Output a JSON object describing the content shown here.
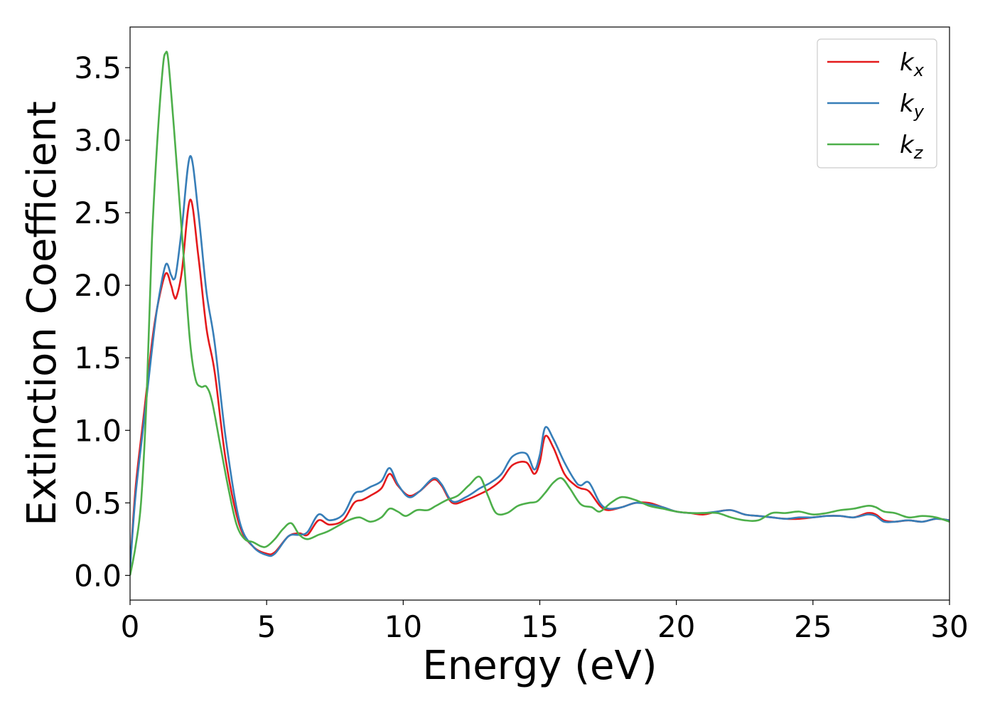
{
  "chart_data": {
    "type": "line",
    "title": "",
    "xlabel": "Energy (eV)",
    "ylabel": "Extinction Coefficient",
    "xlim": [
      0,
      30
    ],
    "ylim": [
      -0.17,
      3.78
    ],
    "xticks": [
      0,
      5,
      10,
      15,
      20,
      25,
      30
    ],
    "xtick_labels": [
      "0",
      "5",
      "10",
      "15",
      "20",
      "25",
      "30"
    ],
    "yticks": [
      0.0,
      0.5,
      1.0,
      1.5,
      2.0,
      2.5,
      3.0,
      3.5
    ],
    "ytick_labels": [
      "0.0",
      "0.5",
      "1.0",
      "1.5",
      "2.0",
      "2.5",
      "3.0",
      "3.5"
    ],
    "grid": false,
    "legend_position": "top-right",
    "series": [
      {
        "name": "kx",
        "legend_main": "k",
        "legend_sub": "x",
        "color": "#e41a1c",
        "x": [
          0,
          0.2,
          0.5,
          0.8,
          1.0,
          1.3,
          1.5,
          1.6,
          1.7,
          1.9,
          2.2,
          2.5,
          2.8,
          3.1,
          3.5,
          4.0,
          4.5,
          5.0,
          5.3,
          5.8,
          6.2,
          6.5,
          6.9,
          7.3,
          7.8,
          8.2,
          8.5,
          8.8,
          9.2,
          9.5,
          9.8,
          10.2,
          10.6,
          11.1,
          11.4,
          11.8,
          12.3,
          12.8,
          13.2,
          13.6,
          14.0,
          14.5,
          14.8,
          15.0,
          15.2,
          15.5,
          15.9,
          16.3,
          16.5,
          16.8,
          17.2,
          17.5,
          18.0,
          18.5,
          19.0,
          19.5,
          20.0,
          20.5,
          21.0,
          21.5,
          22.0,
          22.5,
          23.0,
          23.5,
          24.0,
          24.5,
          25.0,
          25.5,
          26.0,
          26.5,
          27.0,
          27.3,
          27.6,
          28.0,
          28.5,
          29.0,
          29.5,
          30.0
        ],
        "y": [
          0.05,
          0.6,
          1.1,
          1.6,
          1.85,
          2.08,
          2.0,
          1.93,
          1.92,
          2.1,
          2.59,
          2.2,
          1.7,
          1.4,
          0.8,
          0.35,
          0.2,
          0.15,
          0.16,
          0.27,
          0.29,
          0.28,
          0.38,
          0.35,
          0.38,
          0.5,
          0.52,
          0.55,
          0.6,
          0.7,
          0.62,
          0.55,
          0.58,
          0.66,
          0.62,
          0.5,
          0.52,
          0.56,
          0.6,
          0.66,
          0.76,
          0.78,
          0.7,
          0.78,
          0.96,
          0.88,
          0.7,
          0.62,
          0.6,
          0.58,
          0.48,
          0.45,
          0.47,
          0.5,
          0.5,
          0.47,
          0.44,
          0.43,
          0.42,
          0.44,
          0.45,
          0.42,
          0.41,
          0.4,
          0.39,
          0.39,
          0.4,
          0.41,
          0.41,
          0.4,
          0.43,
          0.42,
          0.38,
          0.37,
          0.38,
          0.37,
          0.39,
          0.38
        ]
      },
      {
        "name": "ky",
        "legend_main": "k",
        "legend_sub": "y",
        "color": "#377eb8",
        "x": [
          0,
          0.2,
          0.5,
          0.8,
          1.0,
          1.3,
          1.5,
          1.6,
          1.7,
          1.9,
          2.2,
          2.5,
          2.8,
          3.1,
          3.5,
          4.0,
          4.5,
          5.0,
          5.3,
          5.8,
          6.2,
          6.5,
          6.9,
          7.3,
          7.8,
          8.2,
          8.5,
          8.8,
          9.2,
          9.5,
          9.8,
          10.2,
          10.6,
          11.1,
          11.4,
          11.8,
          12.3,
          12.8,
          13.2,
          13.6,
          14.0,
          14.5,
          14.8,
          15.0,
          15.2,
          15.5,
          15.9,
          16.3,
          16.5,
          16.8,
          17.2,
          17.5,
          18.0,
          18.5,
          19.0,
          19.5,
          20.0,
          20.5,
          21.0,
          21.5,
          22.0,
          22.5,
          23.0,
          23.5,
          24.0,
          24.5,
          25.0,
          25.5,
          26.0,
          26.5,
          27.0,
          27.3,
          27.6,
          28.0,
          28.5,
          29.0,
          29.5,
          30.0
        ],
        "y": [
          0.05,
          0.55,
          1.05,
          1.55,
          1.85,
          2.14,
          2.07,
          2.04,
          2.1,
          2.4,
          2.89,
          2.5,
          1.95,
          1.6,
          0.95,
          0.38,
          0.2,
          0.14,
          0.15,
          0.27,
          0.28,
          0.3,
          0.42,
          0.38,
          0.42,
          0.56,
          0.58,
          0.61,
          0.65,
          0.74,
          0.63,
          0.54,
          0.58,
          0.67,
          0.63,
          0.51,
          0.54,
          0.6,
          0.64,
          0.7,
          0.82,
          0.84,
          0.73,
          0.83,
          1.02,
          0.94,
          0.78,
          0.65,
          0.62,
          0.64,
          0.5,
          0.46,
          0.47,
          0.5,
          0.49,
          0.47,
          0.44,
          0.43,
          0.43,
          0.44,
          0.45,
          0.42,
          0.41,
          0.4,
          0.39,
          0.4,
          0.4,
          0.41,
          0.41,
          0.4,
          0.42,
          0.41,
          0.37,
          0.37,
          0.38,
          0.37,
          0.39,
          0.38
        ]
      },
      {
        "name": "kz",
        "legend_main": "k",
        "legend_sub": "z",
        "color": "#4daf4a",
        "x": [
          0,
          0.2,
          0.4,
          0.6,
          0.8,
          1.0,
          1.2,
          1.3,
          1.4,
          1.6,
          1.8,
          2.0,
          2.2,
          2.4,
          2.6,
          2.8,
          3.0,
          3.3,
          3.6,
          3.9,
          4.2,
          4.5,
          4.8,
          5.0,
          5.3,
          5.6,
          5.9,
          6.2,
          6.5,
          6.9,
          7.2,
          7.6,
          8.0,
          8.4,
          8.8,
          9.2,
          9.5,
          9.8,
          10.1,
          10.5,
          10.9,
          11.2,
          11.6,
          12.0,
          12.4,
          12.8,
          13.1,
          13.4,
          13.8,
          14.2,
          14.6,
          14.9,
          15.2,
          15.5,
          15.8,
          16.1,
          16.5,
          16.9,
          17.2,
          17.6,
          18.0,
          18.5,
          19.0,
          19.5,
          20.0,
          20.5,
          21.0,
          21.5,
          22.0,
          22.5,
          23.0,
          23.5,
          24.0,
          24.5,
          25.0,
          25.5,
          26.0,
          26.5,
          27.0,
          27.3,
          27.6,
          28.0,
          28.5,
          29.0,
          29.5,
          30.0
        ],
        "y": [
          0.0,
          0.2,
          0.5,
          1.2,
          2.3,
          3.0,
          3.5,
          3.6,
          3.55,
          3.1,
          2.6,
          2.1,
          1.6,
          1.35,
          1.3,
          1.3,
          1.2,
          0.9,
          0.6,
          0.35,
          0.25,
          0.23,
          0.2,
          0.2,
          0.25,
          0.32,
          0.36,
          0.28,
          0.25,
          0.28,
          0.3,
          0.34,
          0.38,
          0.4,
          0.37,
          0.4,
          0.46,
          0.44,
          0.41,
          0.45,
          0.45,
          0.48,
          0.52,
          0.55,
          0.62,
          0.68,
          0.55,
          0.43,
          0.43,
          0.48,
          0.5,
          0.51,
          0.57,
          0.64,
          0.67,
          0.6,
          0.49,
          0.47,
          0.44,
          0.5,
          0.54,
          0.52,
          0.48,
          0.46,
          0.44,
          0.43,
          0.43,
          0.43,
          0.4,
          0.38,
          0.38,
          0.43,
          0.43,
          0.44,
          0.42,
          0.43,
          0.45,
          0.46,
          0.48,
          0.47,
          0.44,
          0.43,
          0.4,
          0.41,
          0.4,
          0.37
        ]
      }
    ]
  }
}
